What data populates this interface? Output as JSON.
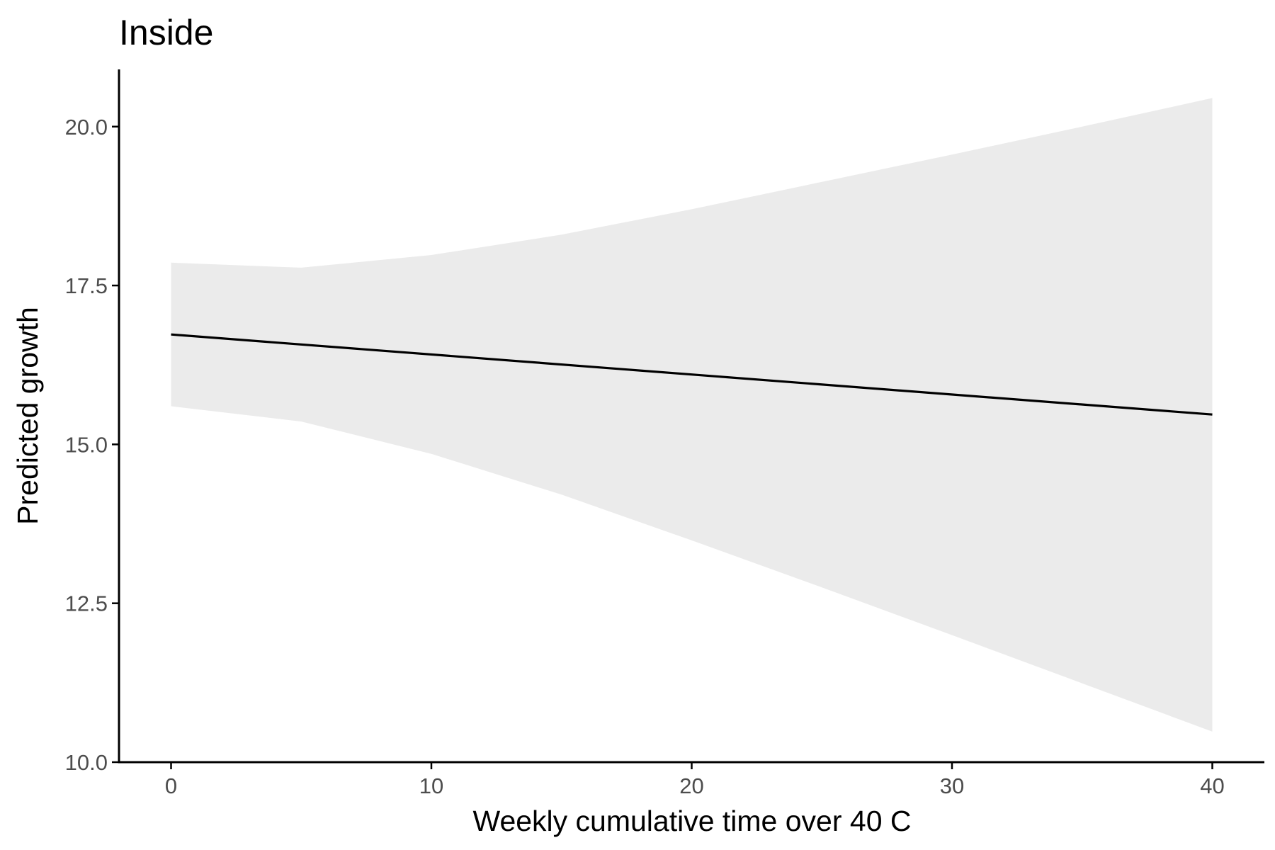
{
  "chart_data": {
    "type": "line",
    "title": "Inside",
    "xlabel": "Weekly cumulative time over 40 C",
    "ylabel": "Predicted growth",
    "xlim": [
      -2,
      42
    ],
    "ylim": [
      10,
      20.9
    ],
    "x_ticks": [
      0,
      10,
      20,
      30,
      40
    ],
    "x_tick_labels": [
      "0",
      "10",
      "20",
      "30",
      "40"
    ],
    "y_ticks": [
      10,
      12.5,
      15,
      17.5,
      20
    ],
    "y_tick_labels": [
      "10.0",
      "12.5",
      "15.0",
      "17.5",
      "20.0"
    ],
    "grid": false,
    "legend": "none",
    "series": [
      {
        "x": [
          0,
          40
        ],
        "y": [
          16.73,
          15.47
        ],
        "color": "#000000"
      }
    ],
    "confidence_band": {
      "x": [
        0,
        5,
        10,
        15,
        20,
        25,
        30,
        35,
        40
      ],
      "lower": [
        15.6,
        15.36,
        14.85,
        14.21,
        13.49,
        12.75,
        12.0,
        11.24,
        10.48
      ],
      "upper": [
        17.86,
        17.78,
        17.98,
        18.3,
        18.7,
        19.13,
        19.56,
        20.0,
        20.45
      ],
      "color": "#ebebeb"
    }
  }
}
